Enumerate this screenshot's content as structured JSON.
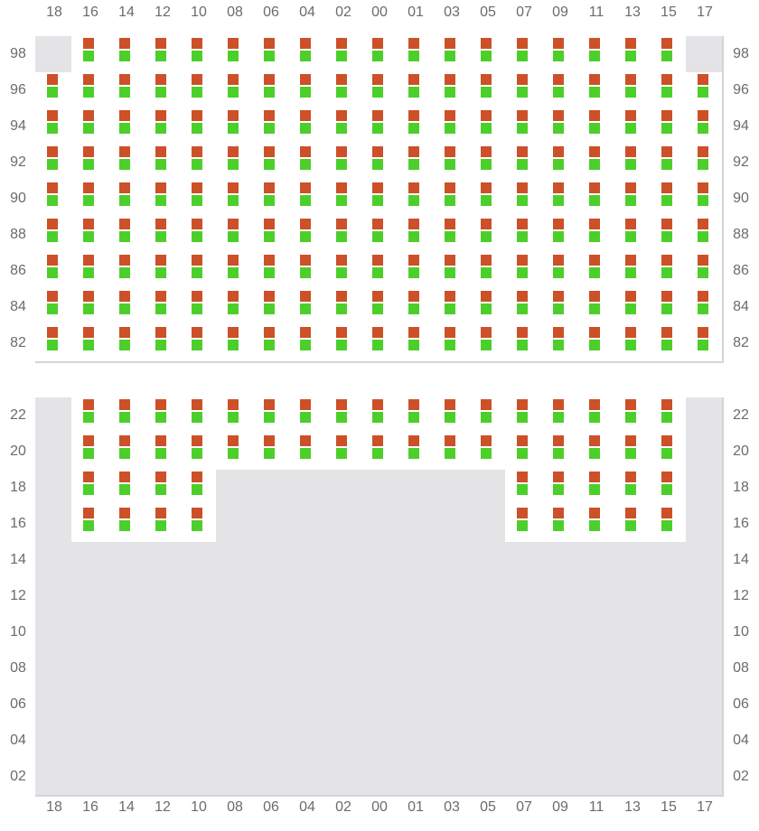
{
  "columns": [
    "18",
    "16",
    "14",
    "12",
    "10",
    "08",
    "06",
    "04",
    "02",
    "00",
    "01",
    "03",
    "05",
    "07",
    "09",
    "11",
    "13",
    "15",
    "17"
  ],
  "colors": {
    "marker_top": "#cc5028",
    "marker_bottom": "#4ccf2a",
    "unavailable": "#e4e4e7",
    "border": "#d4d4d8"
  },
  "sections": [
    {
      "name": "upper",
      "rows": [
        {
          "label": "98",
          "available": [
            "16",
            "14",
            "12",
            "10",
            "08",
            "06",
            "04",
            "02",
            "00",
            "01",
            "03",
            "05",
            "07",
            "09",
            "11",
            "13",
            "15"
          ]
        },
        {
          "label": "96",
          "available": "all"
        },
        {
          "label": "94",
          "available": "all"
        },
        {
          "label": "92",
          "available": "all"
        },
        {
          "label": "90",
          "available": "all"
        },
        {
          "label": "88",
          "available": "all"
        },
        {
          "label": "86",
          "available": "all"
        },
        {
          "label": "84",
          "available": "all"
        },
        {
          "label": "82",
          "available": "all"
        }
      ]
    },
    {
      "name": "lower",
      "rows": [
        {
          "label": "22",
          "available": [
            "16",
            "14",
            "12",
            "10",
            "08",
            "06",
            "04",
            "02",
            "00",
            "01",
            "03",
            "05",
            "07",
            "09",
            "11",
            "13",
            "15"
          ]
        },
        {
          "label": "20",
          "available": [
            "16",
            "14",
            "12",
            "10",
            "08",
            "06",
            "04",
            "02",
            "00",
            "01",
            "03",
            "05",
            "07",
            "09",
            "11",
            "13",
            "15"
          ]
        },
        {
          "label": "18",
          "available": [
            "16",
            "14",
            "12",
            "10",
            "07",
            "09",
            "11",
            "13",
            "15"
          ]
        },
        {
          "label": "16",
          "available": [
            "16",
            "14",
            "12",
            "10",
            "07",
            "09",
            "11",
            "13",
            "15"
          ]
        },
        {
          "label": "14",
          "available": []
        },
        {
          "label": "12",
          "available": []
        },
        {
          "label": "10",
          "available": []
        },
        {
          "label": "08",
          "available": []
        },
        {
          "label": "06",
          "available": []
        },
        {
          "label": "04",
          "available": []
        },
        {
          "label": "02",
          "available": []
        }
      ]
    }
  ]
}
